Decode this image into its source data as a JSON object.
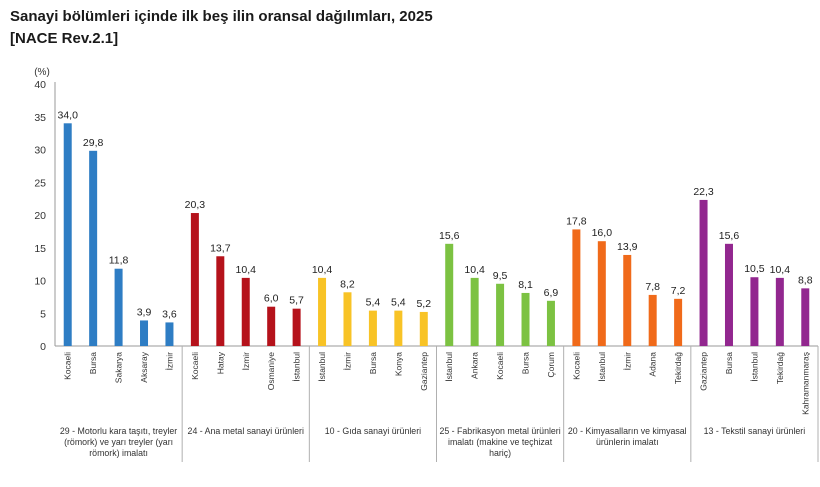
{
  "title_line1": "Sanayi bölümleri içinde ilk beş ilin oransal dağılımları, 2025",
  "title_line2": "[NACE Rev.2.1]",
  "chart_data": {
    "type": "bar",
    "ylabel": "(%)",
    "ylim": [
      0,
      40
    ],
    "yticks": [
      0,
      5,
      10,
      15,
      20,
      25,
      30,
      35,
      40
    ],
    "groups": [
      {
        "label": "29 - Motorlu kara taşıtı, treyler (römork) ve yarı treyler (yarı römork) imalatı",
        "label_lines": [
          "29 - Motorlu kara taşıtı, treyler",
          "(römork) ve yarı treyler (yarı",
          "römork) imalatı"
        ],
        "color": "#2e7dc4",
        "categories": [
          "Kocaeli",
          "Bursa",
          "Sakarya",
          "Aksaray",
          "İzmir"
        ],
        "values": [
          34.0,
          29.8,
          11.8,
          3.9,
          3.6
        ],
        "value_labels": [
          "34,0",
          "29,8",
          "11,8",
          "3,9",
          "3,6"
        ]
      },
      {
        "label": "24 - Ana metal sanayi ürünleri",
        "label_lines": [
          "24 - Ana metal sanayi ürünleri"
        ],
        "color": "#b5121b",
        "categories": [
          "Kocaeli",
          "Hatay",
          "İzmir",
          "Osmaniye",
          "İstanbul"
        ],
        "values": [
          20.3,
          13.7,
          10.4,
          6.0,
          5.7
        ],
        "value_labels": [
          "20,3",
          "13,7",
          "10,4",
          "6,0",
          "5,7"
        ]
      },
      {
        "label": "10 - Gıda sanayi ürünleri",
        "label_lines": [
          "10 - Gıda sanayi ürünleri"
        ],
        "color": "#f8c326",
        "categories": [
          "İstanbul",
          "İzmir",
          "Bursa",
          "Konya",
          "Gaziantep"
        ],
        "values": [
          10.4,
          8.2,
          5.4,
          5.4,
          5.2
        ],
        "value_labels": [
          "10,4",
          "8,2",
          "5,4",
          "5,4",
          "5,2"
        ]
      },
      {
        "label": "25 - Fabrikasyon metal ürünleri imalatı (makine ve teçhizat hariç)",
        "label_lines": [
          "25 - Fabrikasyon metal ürünleri",
          "imalatı (makine ve teçhizat",
          "hariç)"
        ],
        "color": "#7cc242",
        "categories": [
          "İstanbul",
          "Ankara",
          "Kocaeli",
          "Bursa",
          "Çorum"
        ],
        "values": [
          15.6,
          10.4,
          9.5,
          8.1,
          6.9
        ],
        "value_labels": [
          "15,6",
          "10,4",
          "9,5",
          "8,1",
          "6,9"
        ]
      },
      {
        "label": "20 - Kimyasalların ve kimyasal ürünlerin imalatı",
        "label_lines": [
          "20 - Kimyasalların ve kimyasal",
          "ürünlerin imalatı"
        ],
        "color": "#f06a1a",
        "categories": [
          "Kocaeli",
          "İstanbul",
          "İzmir",
          "Adana",
          "Tekirdağ"
        ],
        "values": [
          17.8,
          16.0,
          13.9,
          7.8,
          7.2
        ],
        "value_labels": [
          "17,8",
          "16,0",
          "13,9",
          "7,8",
          "7,2"
        ]
      },
      {
        "label": "13 - Tekstil sanayi ürünleri",
        "label_lines": [
          "13 - Tekstil sanayi ürünleri"
        ],
        "color": "#92278f",
        "categories": [
          "Gaziantep",
          "Bursa",
          "İstanbul",
          "Tekirdağ",
          "Kahramanmaraş"
        ],
        "values": [
          22.3,
          15.6,
          10.5,
          10.4,
          8.8
        ],
        "value_labels": [
          "22,3",
          "15,6",
          "10,5",
          "10,4",
          "8,8"
        ]
      }
    ]
  }
}
